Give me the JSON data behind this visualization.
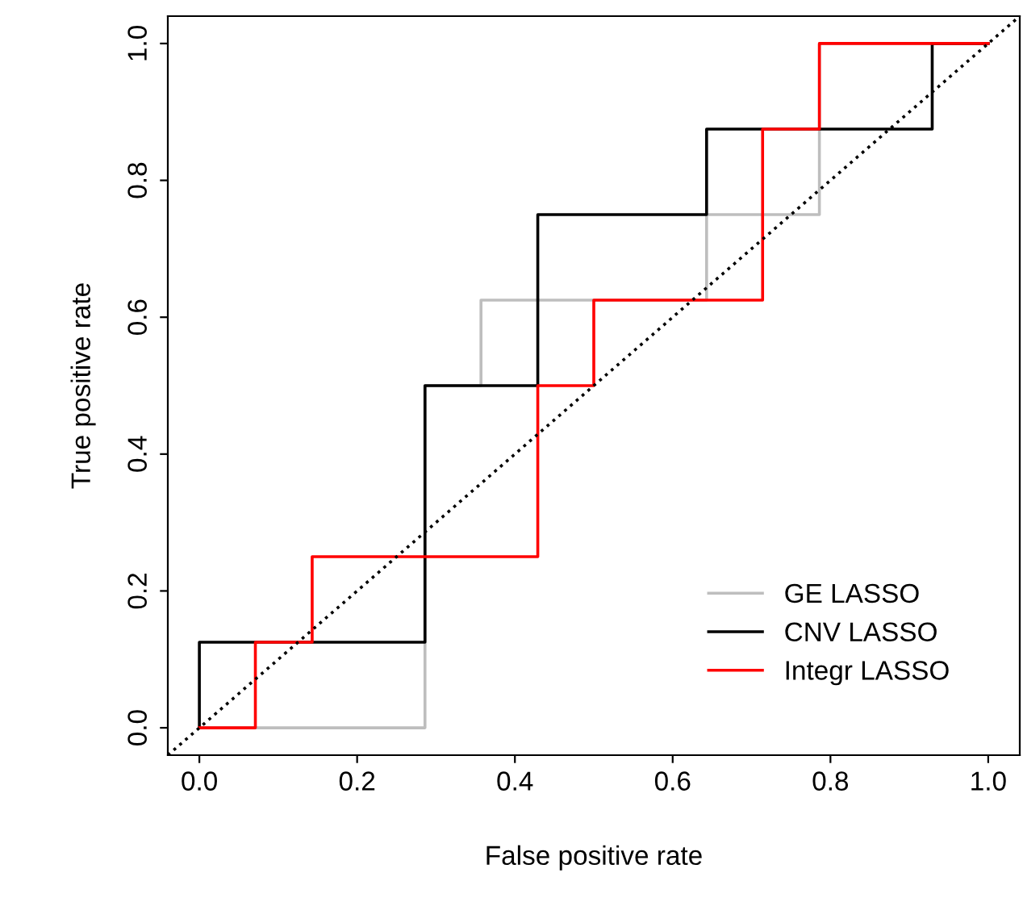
{
  "chart_data": {
    "type": "line",
    "xlabel": "False positive rate",
    "ylabel": "True positive rate",
    "xlim": [
      -0.04,
      1.04
    ],
    "ylim": [
      -0.04,
      1.04
    ],
    "xticks": [
      {
        "value": 0,
        "label": "0.0"
      },
      0.2,
      0.4,
      0.6,
      0.8,
      {
        "value": 1,
        "label": "1.0"
      }
    ],
    "yticks": [
      {
        "value": 0,
        "label": "0.0"
      },
      0.2,
      0.4,
      0.6,
      0.8,
      {
        "value": 1,
        "label": "1.0"
      }
    ],
    "grid": false,
    "legend": "bottom right",
    "line_style": "solid",
    "marker": "none",
    "series": [
      {
        "name": "GE LASSO",
        "color": "#bebebe",
        "x": [
          0,
          0.286,
          0.286,
          0.357,
          0.357,
          0.643,
          0.643,
          0.786,
          0.786,
          1
        ],
        "values": [
          0,
          0,
          0.5,
          0.5,
          0.625,
          0.625,
          0.75,
          0.75,
          1,
          1
        ]
      },
      {
        "name": "CNV LASSO",
        "color": "#000000",
        "x": [
          0,
          0,
          0.286,
          0.286,
          0.429,
          0.429,
          0.643,
          0.643,
          0.929,
          0.929,
          1
        ],
        "values": [
          0,
          0.125,
          0.125,
          0.5,
          0.5,
          0.75,
          0.75,
          0.875,
          0.875,
          1,
          1
        ]
      },
      {
        "name": "Integr LASSO",
        "color": "#ff0000",
        "x": [
          0,
          0.071,
          0.071,
          0.143,
          0.143,
          0.429,
          0.429,
          0.5,
          0.5,
          0.714,
          0.714,
          0.786,
          0.786,
          1
        ],
        "values": [
          0,
          0,
          0.125,
          0.125,
          0.25,
          0.25,
          0.5,
          0.5,
          0.625,
          0.625,
          0.875,
          0.875,
          1,
          1
        ]
      },
      {
        "color": "#000000",
        "line_style": "dotted",
        "x": [
          -0.04,
          1.04
        ],
        "values": [
          -0.04,
          1.04
        ]
      }
    ]
  }
}
